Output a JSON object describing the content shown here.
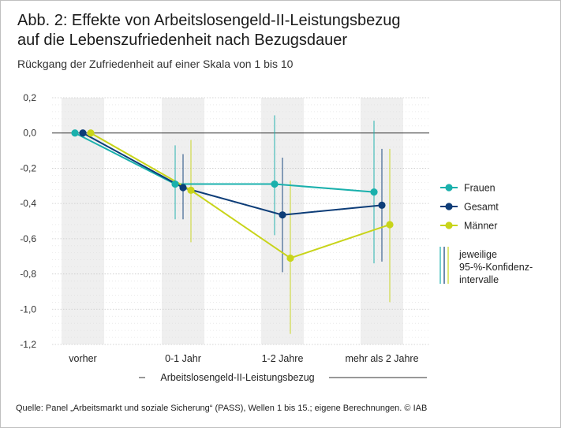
{
  "header": {
    "title_line1": "Abb. 2: Effekte von Arbeitslosengeld-II-Leistungsbezug",
    "title_line2": "auf die Lebenszufriedenheit nach Bezugsdauer",
    "subtitle": "Rückgang der Zufriedenheit auf einer Skala von 1 bis 10"
  },
  "footer": {
    "source": "Quelle: Panel „Arbeitsmarkt und soziale Sicherung“ (PASS), Wellen 1 bis 15.; eigene Berechnungen.   © IAB"
  },
  "chart_data": {
    "type": "line",
    "title": "Effekte von Arbeitslosengeld-II-Leistungsbezug auf die Lebenszufriedenheit nach Bezugsdauer",
    "xlabel": "Arbeitslosengeld-II-Leistungsbezug",
    "ylabel": "",
    "categories": [
      "vorher",
      "0-1 Jahr",
      "1-2 Jahre",
      "mehr als 2 Jahre"
    ],
    "ylim": [
      -1.2,
      0.2
    ],
    "yticks": [
      0.2,
      0.0,
      -0.2,
      -0.4,
      -0.6,
      -0.8,
      -1.0,
      -1.2
    ],
    "ytick_labels": [
      "0,2",
      "0,0",
      "-0,2",
      "-0,4",
      "-0,6",
      "-0,8",
      "-1,0",
      "-1,2"
    ],
    "series": [
      {
        "name": "Frauen",
        "color": "#1ab0ac",
        "values": [
          0.0,
          -0.29,
          -0.29,
          -0.335
        ],
        "ci": [
          null,
          [
            -0.49,
            -0.07
          ],
          [
            -0.58,
            0.1
          ],
          [
            -0.74,
            0.07
          ]
        ]
      },
      {
        "name": "Gesamt",
        "color": "#0d3d78",
        "values": [
          0.0,
          -0.31,
          -0.465,
          -0.41
        ],
        "ci": [
          null,
          [
            -0.49,
            -0.12
          ],
          [
            -0.79,
            -0.14
          ],
          [
            -0.73,
            -0.09
          ]
        ]
      },
      {
        "name": "Männer",
        "color": "#c8d41a",
        "values": [
          0.0,
          -0.325,
          -0.71,
          -0.52
        ],
        "ci": [
          null,
          [
            -0.62,
            -0.04
          ],
          [
            -1.14,
            -0.27
          ],
          [
            -0.96,
            -0.09
          ]
        ]
      }
    ],
    "legend": {
      "position": "right",
      "ci_label_lines": [
        "jeweilige",
        "95-%-Konfidenz-",
        "intervalle"
      ]
    }
  }
}
